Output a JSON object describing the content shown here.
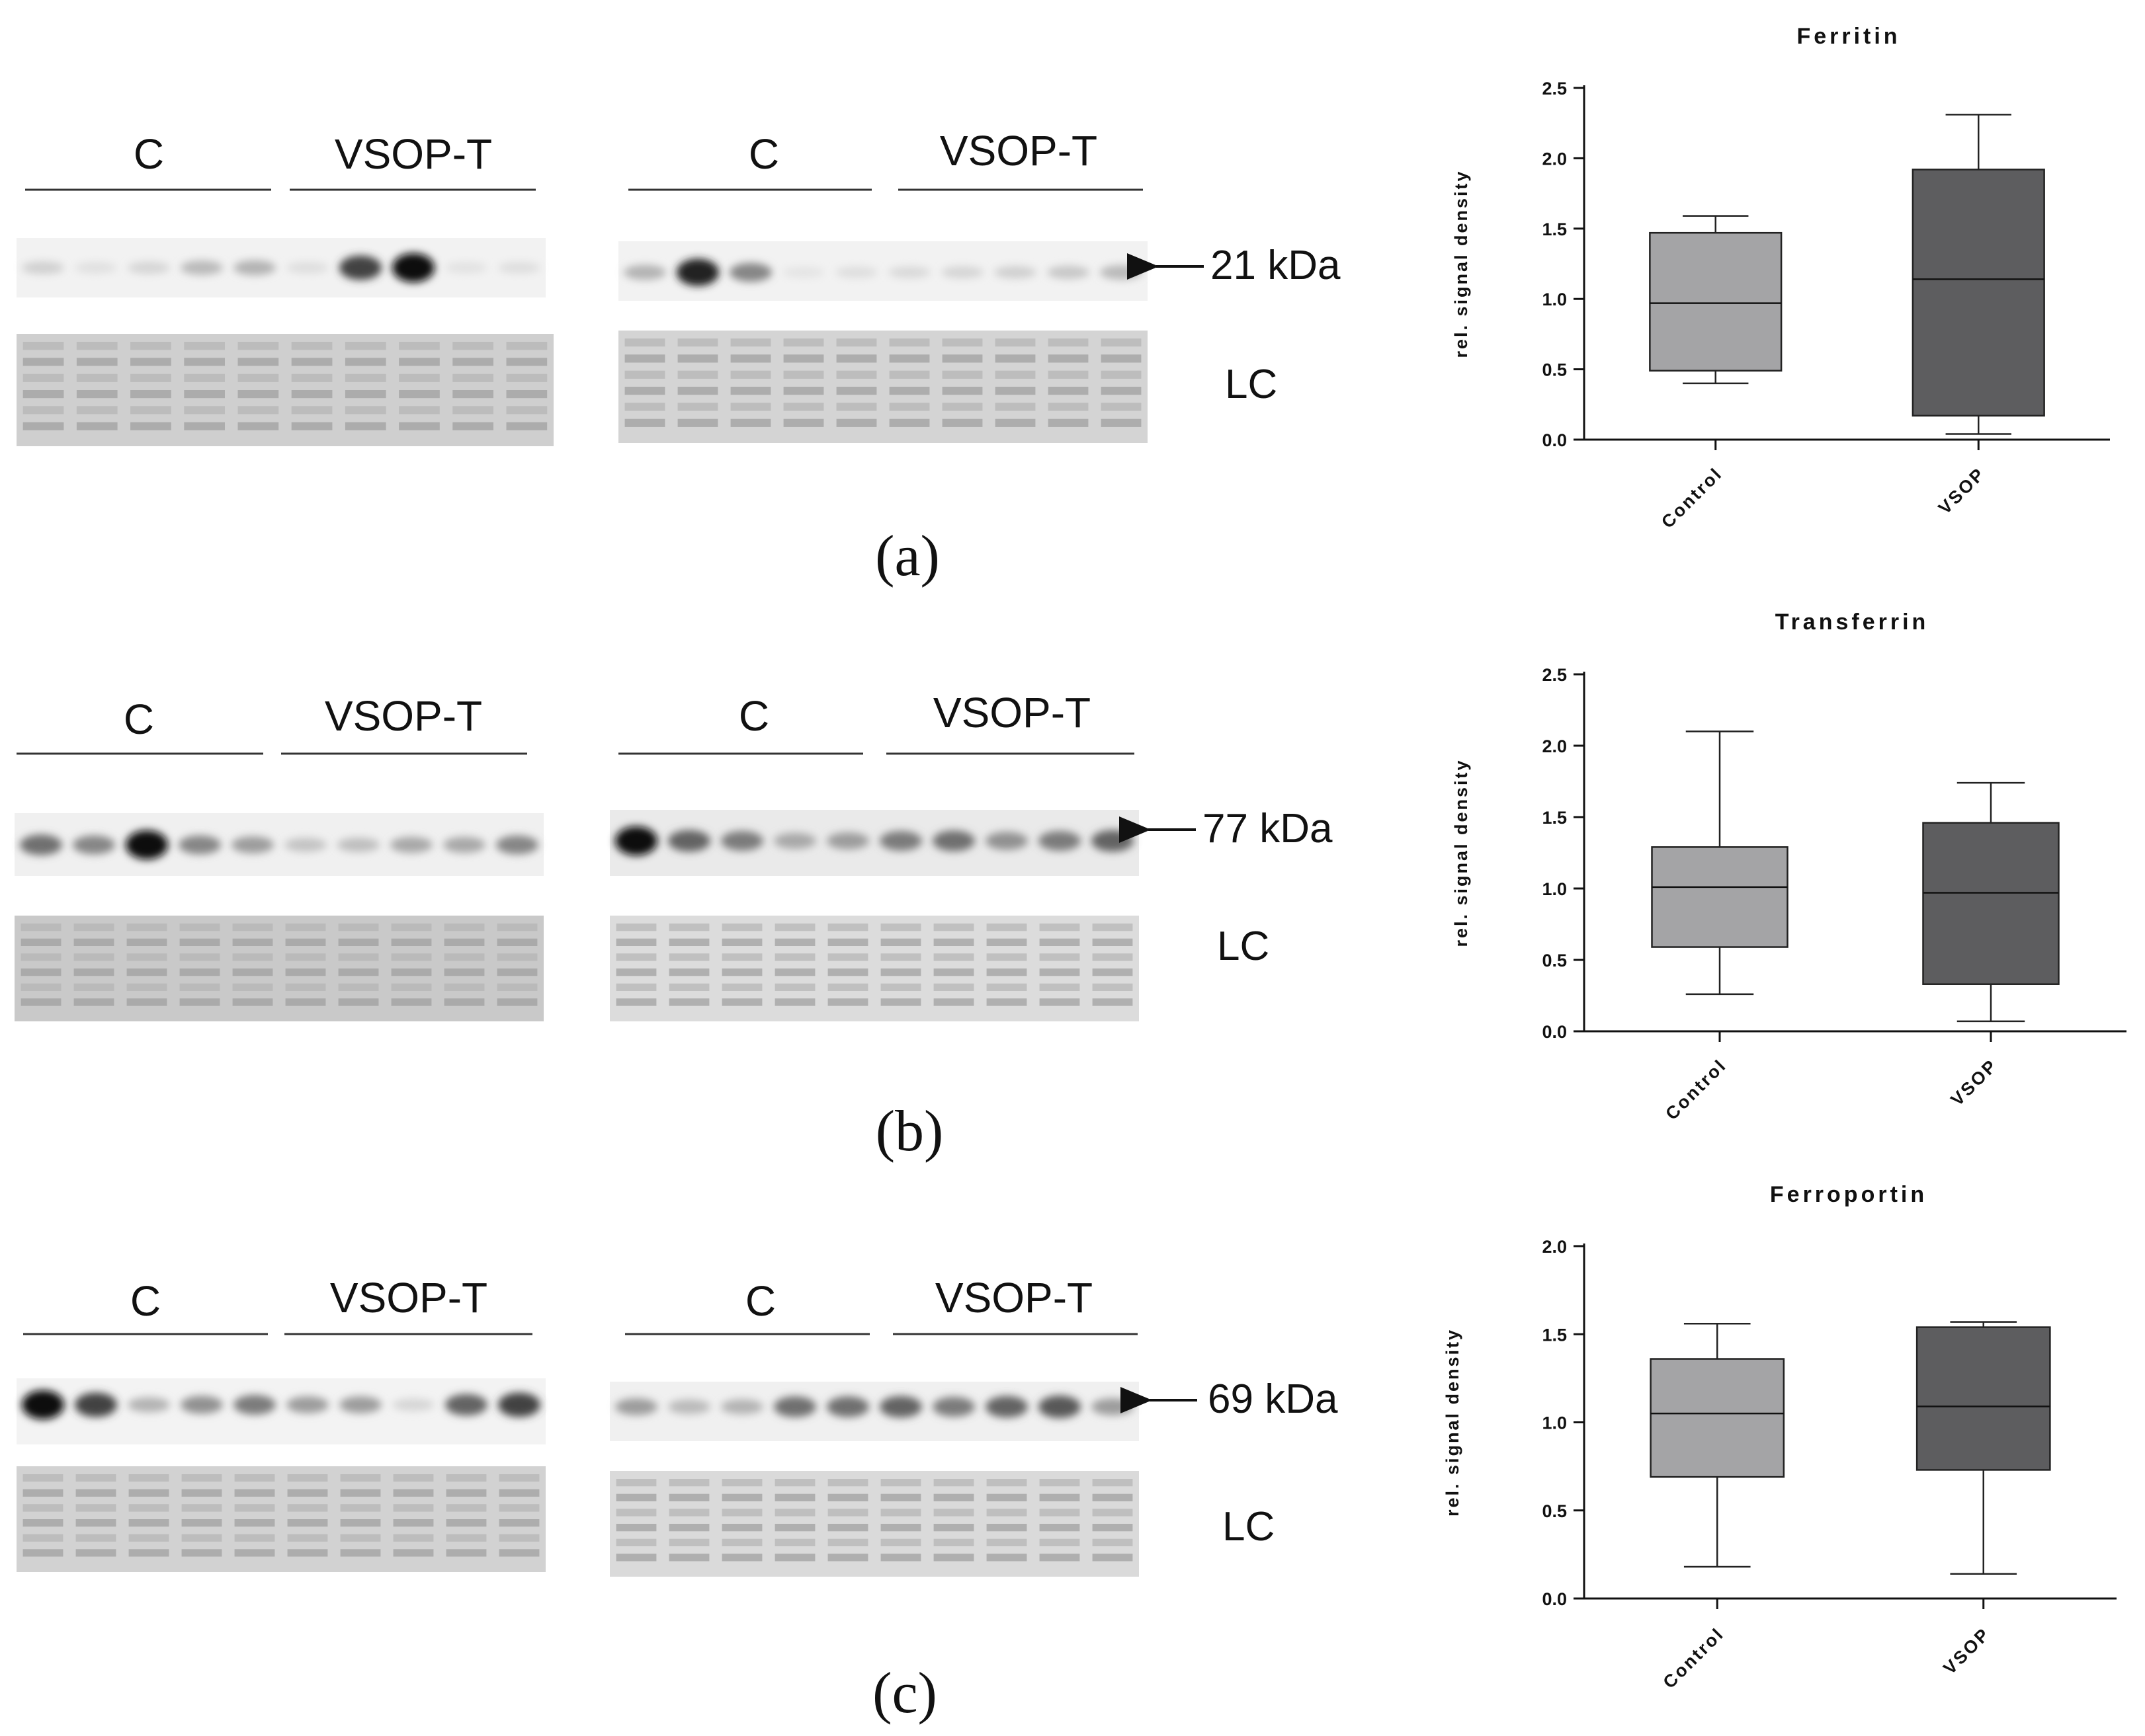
{
  "blot_panels": [
    {
      "id": "a",
      "panel_label": "(a)",
      "groups_left": [
        "C",
        "VSOP-T"
      ],
      "groups_right": [
        "C",
        "VSOP-T"
      ],
      "band_size": "21 kDa",
      "loading_control": "LC",
      "band_intensity_left": [
        0.12,
        0.05,
        0.1,
        0.22,
        0.25,
        0.06,
        0.75,
        1.0,
        0.04,
        0.06
      ],
      "band_intensity_right": [
        0.25,
        0.9,
        0.45,
        0.03,
        0.06,
        0.08,
        0.1,
        0.12,
        0.16,
        0.22
      ]
    },
    {
      "id": "b",
      "panel_label": "(b)",
      "groups_left": [
        "C",
        "VSOP-T"
      ],
      "groups_right": [
        "C",
        "VSOP-T"
      ],
      "band_size": "77 kDa",
      "loading_control": "LC",
      "band_intensity_left": [
        0.55,
        0.45,
        1.0,
        0.45,
        0.35,
        0.18,
        0.2,
        0.3,
        0.3,
        0.45
      ],
      "band_intensity_right": [
        1.0,
        0.6,
        0.5,
        0.3,
        0.35,
        0.5,
        0.55,
        0.4,
        0.5,
        0.6
      ]
    },
    {
      "id": "c",
      "panel_label": "(c)",
      "groups_left": [
        "C",
        "VSOP-T"
      ],
      "groups_right": [
        "C",
        "VSOP-T"
      ],
      "band_size": "69 kDa",
      "loading_control": "LC",
      "band_intensity_left": [
        1.0,
        0.75,
        0.25,
        0.4,
        0.5,
        0.35,
        0.35,
        0.1,
        0.6,
        0.75
      ],
      "band_intensity_right": [
        0.35,
        0.22,
        0.25,
        0.55,
        0.55,
        0.6,
        0.5,
        0.6,
        0.65,
        0.35
      ]
    }
  ],
  "chart_data": [
    {
      "type": "boxplot",
      "title": "Ferritin",
      "ylabel": "rel. signal density",
      "ylim": [
        0,
        2.5
      ],
      "yticks": [
        "0.0",
        "0.5",
        "1.0",
        "1.5",
        "2.0",
        "2.5"
      ],
      "categories": [
        "Control",
        "VSOP"
      ],
      "colors": [
        "#a4a4a6",
        "#5d5d5f"
      ],
      "boxes": [
        {
          "name": "Control",
          "min": 0.4,
          "q1": 0.49,
          "median": 0.97,
          "q3": 1.47,
          "max": 1.59
        },
        {
          "name": "VSOP",
          "min": 0.04,
          "q1": 0.17,
          "median": 1.14,
          "q3": 1.92,
          "max": 2.31
        }
      ]
    },
    {
      "type": "boxplot",
      "title": "Transferrin",
      "ylabel": "rel. signal density",
      "ylim": [
        0,
        2.5
      ],
      "yticks": [
        "0.0",
        "0.5",
        "1.0",
        "1.5",
        "2.0",
        "2.5"
      ],
      "categories": [
        "Control",
        "VSOP"
      ],
      "colors": [
        "#a4a4a6",
        "#5d5d5f"
      ],
      "boxes": [
        {
          "name": "Control",
          "min": 0.26,
          "q1": 0.59,
          "median": 1.01,
          "q3": 1.29,
          "max": 2.1
        },
        {
          "name": "VSOP",
          "min": 0.07,
          "q1": 0.33,
          "median": 0.97,
          "q3": 1.46,
          "max": 1.74
        }
      ]
    },
    {
      "type": "boxplot",
      "title": "Ferroportin",
      "ylabel": "rel. signal density",
      "ylim": [
        0,
        2.0
      ],
      "yticks": [
        "0.0",
        "0.5",
        "1.0",
        "1.5",
        "2.0"
      ],
      "categories": [
        "Control",
        "VSOP"
      ],
      "colors": [
        "#a4a4a6",
        "#5d5d5f"
      ],
      "boxes": [
        {
          "name": "Control",
          "min": 0.18,
          "q1": 0.69,
          "median": 1.05,
          "q3": 1.36,
          "max": 1.56
        },
        {
          "name": "VSOP",
          "min": 0.14,
          "q1": 0.73,
          "median": 1.09,
          "q3": 1.54,
          "max": 1.57
        }
      ]
    }
  ]
}
